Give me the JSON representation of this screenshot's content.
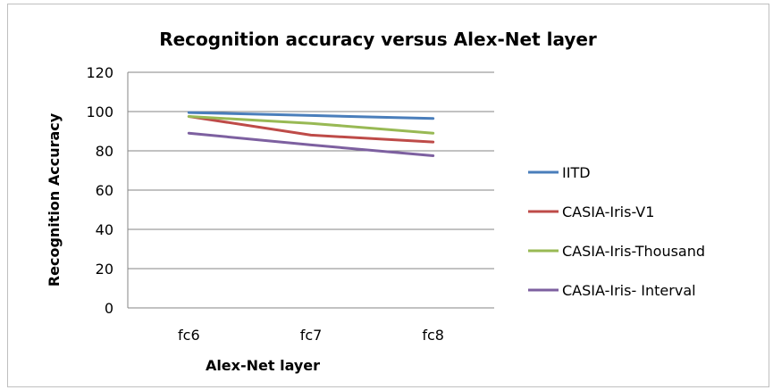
{
  "chart_data": {
    "type": "line",
    "title": "Recognition accuracy versus Alex-Net layer",
    "xlabel": "Alex-Net layer",
    "ylabel": "Recognition Accuracy",
    "categories": [
      "fc6",
      "fc7",
      "fc8"
    ],
    "ylim": [
      0,
      120
    ],
    "yticks": [
      0,
      20,
      40,
      60,
      80,
      100,
      120
    ],
    "grid": true,
    "legend_position": "right",
    "series": [
      {
        "name": "IITD",
        "color": "#4a7ebb",
        "values": [
          99.5,
          98,
          96.5
        ]
      },
      {
        "name": "CASIA-Iris-V1",
        "color": "#be4b48",
        "values": [
          97.5,
          88,
          84.5
        ]
      },
      {
        "name": "CASIA-Iris-Thousand",
        "color": "#98b954",
        "values": [
          97.5,
          94,
          89
        ]
      },
      {
        "name": "CASIA-Iris- Interval",
        "color": "#7d60a0",
        "values": [
          89,
          83,
          77.5
        ]
      }
    ]
  }
}
